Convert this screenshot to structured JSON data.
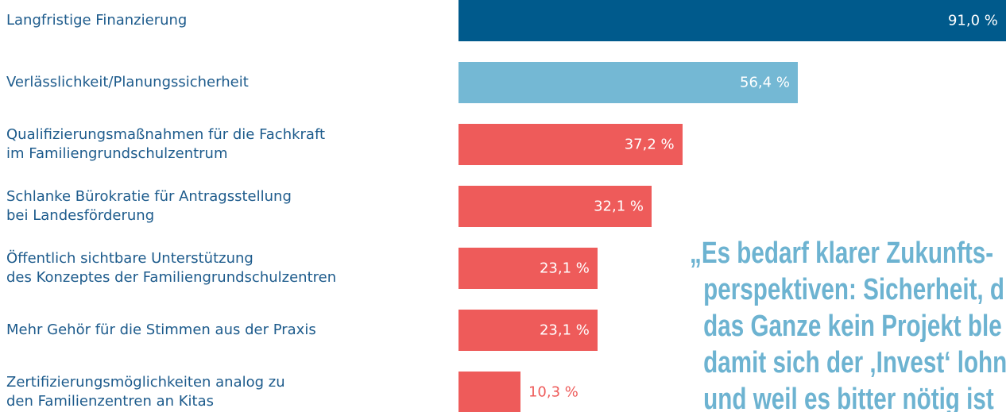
{
  "chart_data": {
    "type": "bar",
    "orientation": "horizontal",
    "categories": [
      "Langfristige Finanzierung",
      "Verlässlichkeit/Planungssicherheit",
      "Qualifizierungsmaßnahmen für die Fachkraft\nim Familiengrundschulzentrum",
      "Schlanke Bürokratie für Antragsstellung\nbei Landesförderung",
      "Öffentlich sichtbare Unterstützung\ndes Konzeptes der Familiengrundschulzentren",
      "Mehr Gehör für die Stimmen aus der Praxis",
      "Zertifizierungsmöglichkeiten analog zu\nden Familienzentren an Kitas"
    ],
    "values": [
      91.0,
      56.4,
      37.2,
      32.1,
      23.1,
      23.1,
      10.3
    ],
    "value_labels": [
      "91,0 %",
      "56,4 %",
      "37,2 %",
      "32,1 %",
      "23,1 %",
      "23,1 %",
      "10,3 %"
    ],
    "colors": [
      "#005a8c",
      "#74b8d4",
      "#ee5b5a",
      "#ee5b5a",
      "#ee5b5a",
      "#ee5b5a",
      "#ee5b5a"
    ]
  },
  "quote": {
    "lines": [
      "„Es bedarf klarer Zukunfts-",
      "perspektiven: Sicherheit, d",
      "das Ganze kein Projekt ble",
      "damit sich der ‚Invest‘ lohn",
      "und weil es bitter nötig ist"
    ]
  }
}
